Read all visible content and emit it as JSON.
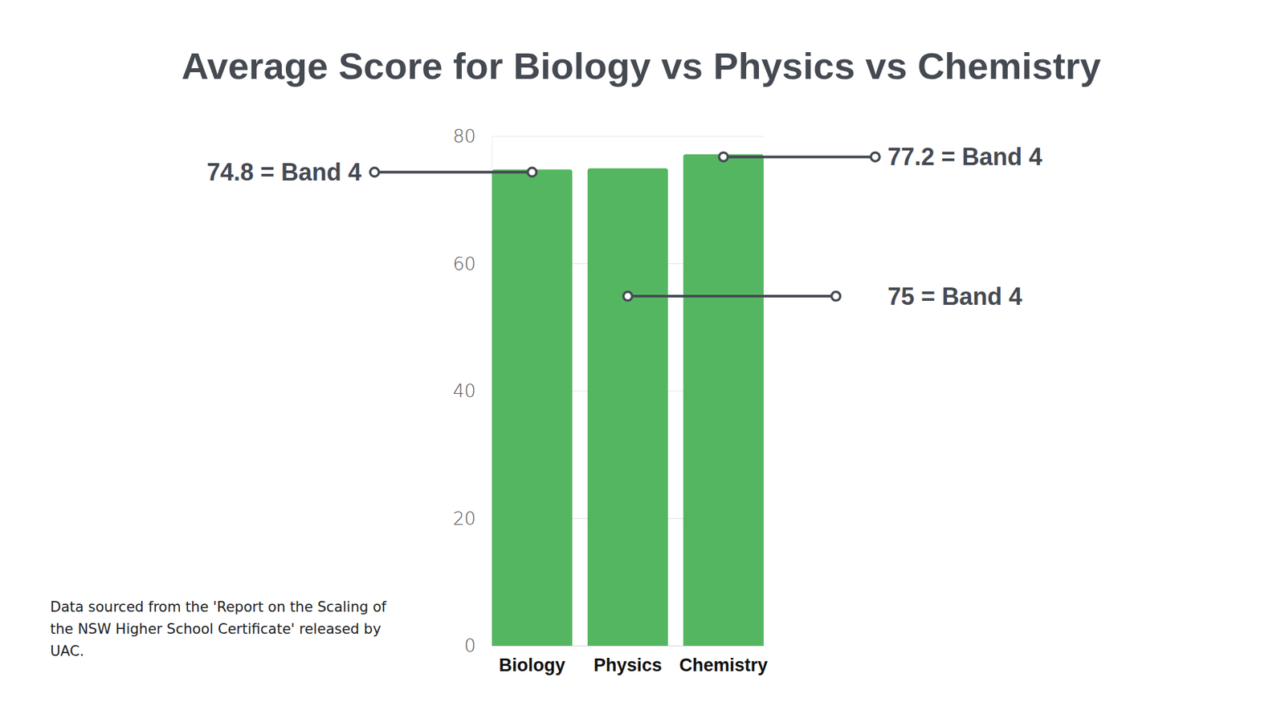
{
  "chart_data": {
    "type": "bar",
    "title": "Average Score for Biology vs Physics vs Chemistry",
    "categories": [
      "Biology",
      "Physics",
      "Chemistry"
    ],
    "values": [
      74.8,
      75,
      77.2
    ],
    "value_labels": [
      "74.8 = Band 4",
      "75 = Band 4",
      "77.2 = Band 4"
    ],
    "data_labels": true,
    "color": "#55b662",
    "ylim": [
      0,
      80
    ],
    "yticks": [
      0,
      20,
      40,
      60,
      80
    ],
    "grid": true,
    "annotations": [
      "Data sourced from the 'Report on the Scaling of the NSW Higher School Certificate' released by UAC."
    ]
  }
}
